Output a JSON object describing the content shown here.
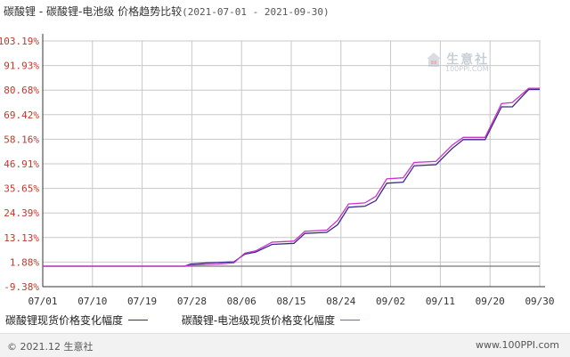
{
  "header": {
    "title": "碳酸锂 - 碳酸锂-电池级 价格趋势比较",
    "date_range": "(2021-07-01 - 2021-09-30)"
  },
  "watermark": {
    "name": "生意社",
    "url": "100PPI.COM"
  },
  "footer": {
    "copyright": "© 2021.12 生意社",
    "site": "www.100PPI.com"
  },
  "colors": {
    "series1": "#3a2a8a",
    "series2": "#cc33cc",
    "grid": "#c8c8c8",
    "axis": "#333333",
    "ytick": "#c0392b"
  },
  "chart_data": {
    "type": "line",
    "title": "碳酸锂 - 碳酸锂-电池级 价格趋势比较",
    "y_ticks": [
      "103.19%",
      "91.93%",
      "80.68%",
      "69.42%",
      "58.16%",
      "46.91%",
      "35.65%",
      "24.39%",
      "13.13%",
      "1.88%",
      "-9.38%"
    ],
    "y_tick_values": [
      103.19,
      91.93,
      80.68,
      69.42,
      58.16,
      46.91,
      35.65,
      24.39,
      13.13,
      1.88,
      -9.38
    ],
    "ylim": [
      -9.38,
      103.19
    ],
    "x_ticks": [
      "07/01",
      "07/10",
      "07/19",
      "07/28",
      "08/06",
      "08/15",
      "08/24",
      "09/02",
      "09/11",
      "09/20",
      "09/30"
    ],
    "x_range": [
      "2021-07-01",
      "2021-09-30"
    ],
    "grid": true,
    "legend_position": "bottom",
    "series": [
      {
        "name": "碳酸锂现货价格变化幅度",
        "color": "#3a2a8a",
        "points": [
          [
            "2021-07-01",
            0
          ],
          [
            "2021-07-27",
            0.0
          ],
          [
            "2021-07-28",
            1.0
          ],
          [
            "2021-07-31",
            1.5
          ],
          [
            "2021-08-05",
            2.0
          ],
          [
            "2021-08-07",
            5.5
          ],
          [
            "2021-08-09",
            6.5
          ],
          [
            "2021-08-12",
            10.0
          ],
          [
            "2021-08-16",
            10.5
          ],
          [
            "2021-08-18",
            15.0
          ],
          [
            "2021-08-22",
            15.5
          ],
          [
            "2021-08-24",
            19.0
          ],
          [
            "2021-08-26",
            27.0
          ],
          [
            "2021-08-29",
            27.5
          ],
          [
            "2021-08-31",
            30.0
          ],
          [
            "2021-09-02",
            38.0
          ],
          [
            "2021-09-05",
            38.5
          ],
          [
            "2021-09-07",
            46.0
          ],
          [
            "2021-09-11",
            46.5
          ],
          [
            "2021-09-14",
            54.0
          ],
          [
            "2021-09-16",
            58.0
          ],
          [
            "2021-09-20",
            58.0
          ],
          [
            "2021-09-23",
            73.0
          ],
          [
            "2021-09-25",
            73.0
          ],
          [
            "2021-09-28",
            81.0
          ],
          [
            "2021-09-30",
            81.0
          ]
        ]
      },
      {
        "name": "碳酸锂-电池级现货价格变化幅度",
        "color": "#cc33cc",
        "points": [
          [
            "2021-07-01",
            0
          ],
          [
            "2021-07-27",
            0.0
          ],
          [
            "2021-07-28",
            0.5
          ],
          [
            "2021-08-02",
            1.0
          ],
          [
            "2021-08-05",
            1.5
          ],
          [
            "2021-08-07",
            6.0
          ],
          [
            "2021-08-09",
            7.0
          ],
          [
            "2021-08-12",
            11.0
          ],
          [
            "2021-08-16",
            11.5
          ],
          [
            "2021-08-18",
            16.0
          ],
          [
            "2021-08-22",
            16.5
          ],
          [
            "2021-08-24",
            21.0
          ],
          [
            "2021-08-26",
            28.5
          ],
          [
            "2021-08-29",
            29.0
          ],
          [
            "2021-08-31",
            32.0
          ],
          [
            "2021-09-02",
            40.0
          ],
          [
            "2021-09-05",
            40.5
          ],
          [
            "2021-09-07",
            47.5
          ],
          [
            "2021-09-11",
            48.0
          ],
          [
            "2021-09-14",
            55.5
          ],
          [
            "2021-09-16",
            59.0
          ],
          [
            "2021-09-20",
            59.0
          ],
          [
            "2021-09-23",
            74.5
          ],
          [
            "2021-09-25",
            75.0
          ],
          [
            "2021-09-28",
            81.5
          ],
          [
            "2021-09-30",
            81.5
          ]
        ]
      }
    ]
  }
}
